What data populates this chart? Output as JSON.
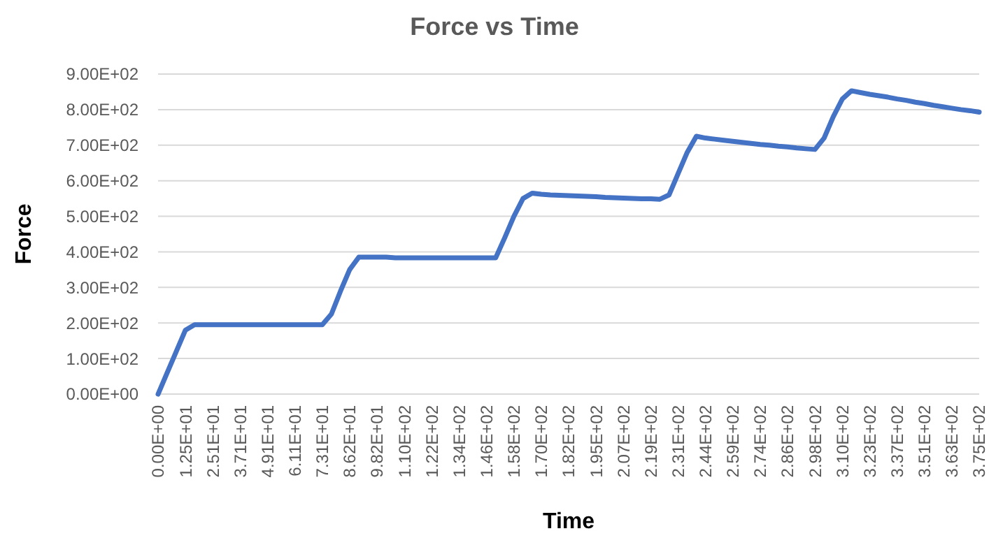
{
  "chart_data": {
    "type": "line",
    "title": "Force vs Time",
    "xlabel": "Time",
    "ylabel": "Force",
    "categories": [
      "0.00E+00",
      null,
      null,
      "1.25E+01",
      null,
      null,
      "2.51E+01",
      null,
      null,
      "3.71E+01",
      null,
      null,
      "4.91E+01",
      null,
      null,
      "6.11E+01",
      null,
      null,
      "7.31E+01",
      null,
      null,
      "8.62E+01",
      null,
      null,
      "9.82E+01",
      null,
      null,
      "1.10E+02",
      null,
      null,
      "1.22E+02",
      null,
      null,
      "1.34E+02",
      null,
      null,
      "1.46E+02",
      null,
      null,
      "1.58E+02",
      null,
      null,
      "1.70E+02",
      null,
      null,
      "1.82E+02",
      null,
      null,
      "1.95E+02",
      null,
      null,
      "2.07E+02",
      null,
      null,
      "2.19E+02",
      null,
      null,
      "2.31E+02",
      null,
      null,
      "2.44E+02",
      null,
      null,
      "2.59E+02",
      null,
      null,
      "2.74E+02",
      null,
      null,
      "2.86E+02",
      null,
      null,
      "2.98E+02",
      null,
      null,
      "3.10E+02",
      null,
      null,
      "3.23E+02",
      null,
      null,
      "3.37E+02",
      null,
      null,
      "3.51E+02",
      null,
      null,
      "3.63E+02",
      null,
      null,
      "3.75E+02"
    ],
    "series": [
      {
        "color": "#4472c4",
        "values": [
          0,
          60,
          120,
          180,
          195,
          195,
          195,
          195,
          195,
          195,
          195,
          195,
          195,
          195,
          195,
          195,
          195,
          195,
          195,
          225,
          290,
          350,
          385,
          385,
          385,
          385,
          383,
          383,
          383,
          383,
          383,
          383,
          383,
          383,
          383,
          383,
          383,
          383,
          440,
          500,
          550,
          565,
          562,
          560,
          559,
          558,
          557,
          556,
          555,
          553,
          552,
          551,
          550,
          549,
          549,
          548,
          560,
          620,
          680,
          725,
          720,
          717,
          714,
          711,
          708,
          705,
          702,
          700,
          697,
          695,
          692,
          690,
          688,
          720,
          780,
          830,
          853,
          848,
          843,
          839,
          835,
          830,
          826,
          821,
          817,
          812,
          808,
          804,
          800,
          797,
          793
        ]
      }
    ],
    "ylim": [
      0,
      900
    ],
    "yticks": [
      {
        "value": 0,
        "label": "0.00E+00"
      },
      {
        "value": 100,
        "label": "1.00E+02"
      },
      {
        "value": 200,
        "label": "2.00E+02"
      },
      {
        "value": 300,
        "label": "3.00E+02"
      },
      {
        "value": 400,
        "label": "4.00E+02"
      },
      {
        "value": 500,
        "label": "5.00E+02"
      },
      {
        "value": 600,
        "label": "6.00E+02"
      },
      {
        "value": 700,
        "label": "7.00E+02"
      },
      {
        "value": 800,
        "label": "8.00E+02"
      },
      {
        "value": 900,
        "label": "9.00E+02"
      }
    ],
    "grid": "y",
    "marker": "none",
    "line_style": "solid"
  }
}
